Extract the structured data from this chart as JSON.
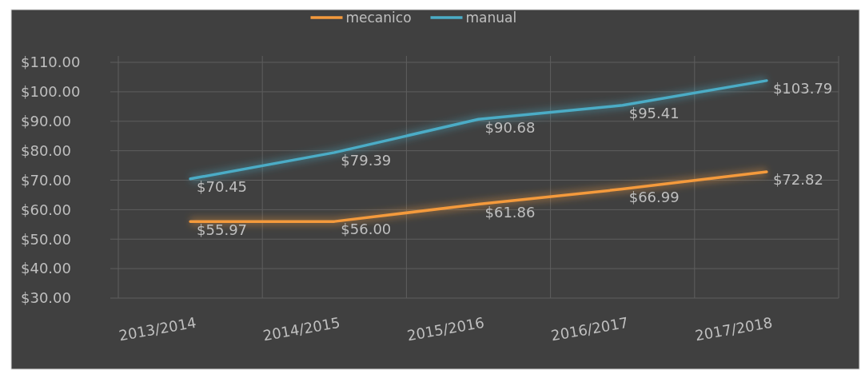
{
  "chart_data": {
    "type": "line",
    "categories": [
      "2013/2014",
      "2014/2015",
      "2015/2016",
      "2016/2017",
      "2017/2018"
    ],
    "series": [
      {
        "name": "mecanico",
        "color": "#f49a3c",
        "values": [
          55.97,
          56.0,
          61.86,
          66.99,
          72.82
        ],
        "value_labels": [
          "$55.97",
          "$56.00",
          "$61.86",
          "$66.99",
          "$72.82"
        ]
      },
      {
        "name": "manual",
        "color": "#4bacc6",
        "values": [
          70.45,
          79.39,
          90.68,
          95.41,
          103.79
        ],
        "value_labels": [
          "$70.45",
          "$79.39",
          "$90.68",
          "$95.41",
          "$103.79"
        ]
      }
    ],
    "ylim": [
      30,
      110
    ],
    "yticks": [
      {
        "value": 30,
        "label": "$30.00"
      },
      {
        "value": 40,
        "label": "$40.00"
      },
      {
        "value": 50,
        "label": "$50.00"
      },
      {
        "value": 60,
        "label": "$60.00"
      },
      {
        "value": 70,
        "label": "$70.00"
      },
      {
        "value": 80,
        "label": "$80.00"
      },
      {
        "value": 90,
        "label": "$90.00"
      },
      {
        "value": 100,
        "label": "$100.00"
      },
      {
        "value": 110,
        "label": "$110.00"
      }
    ],
    "grid": true,
    "legend": "top",
    "marker": "none",
    "line_style": "solid"
  }
}
